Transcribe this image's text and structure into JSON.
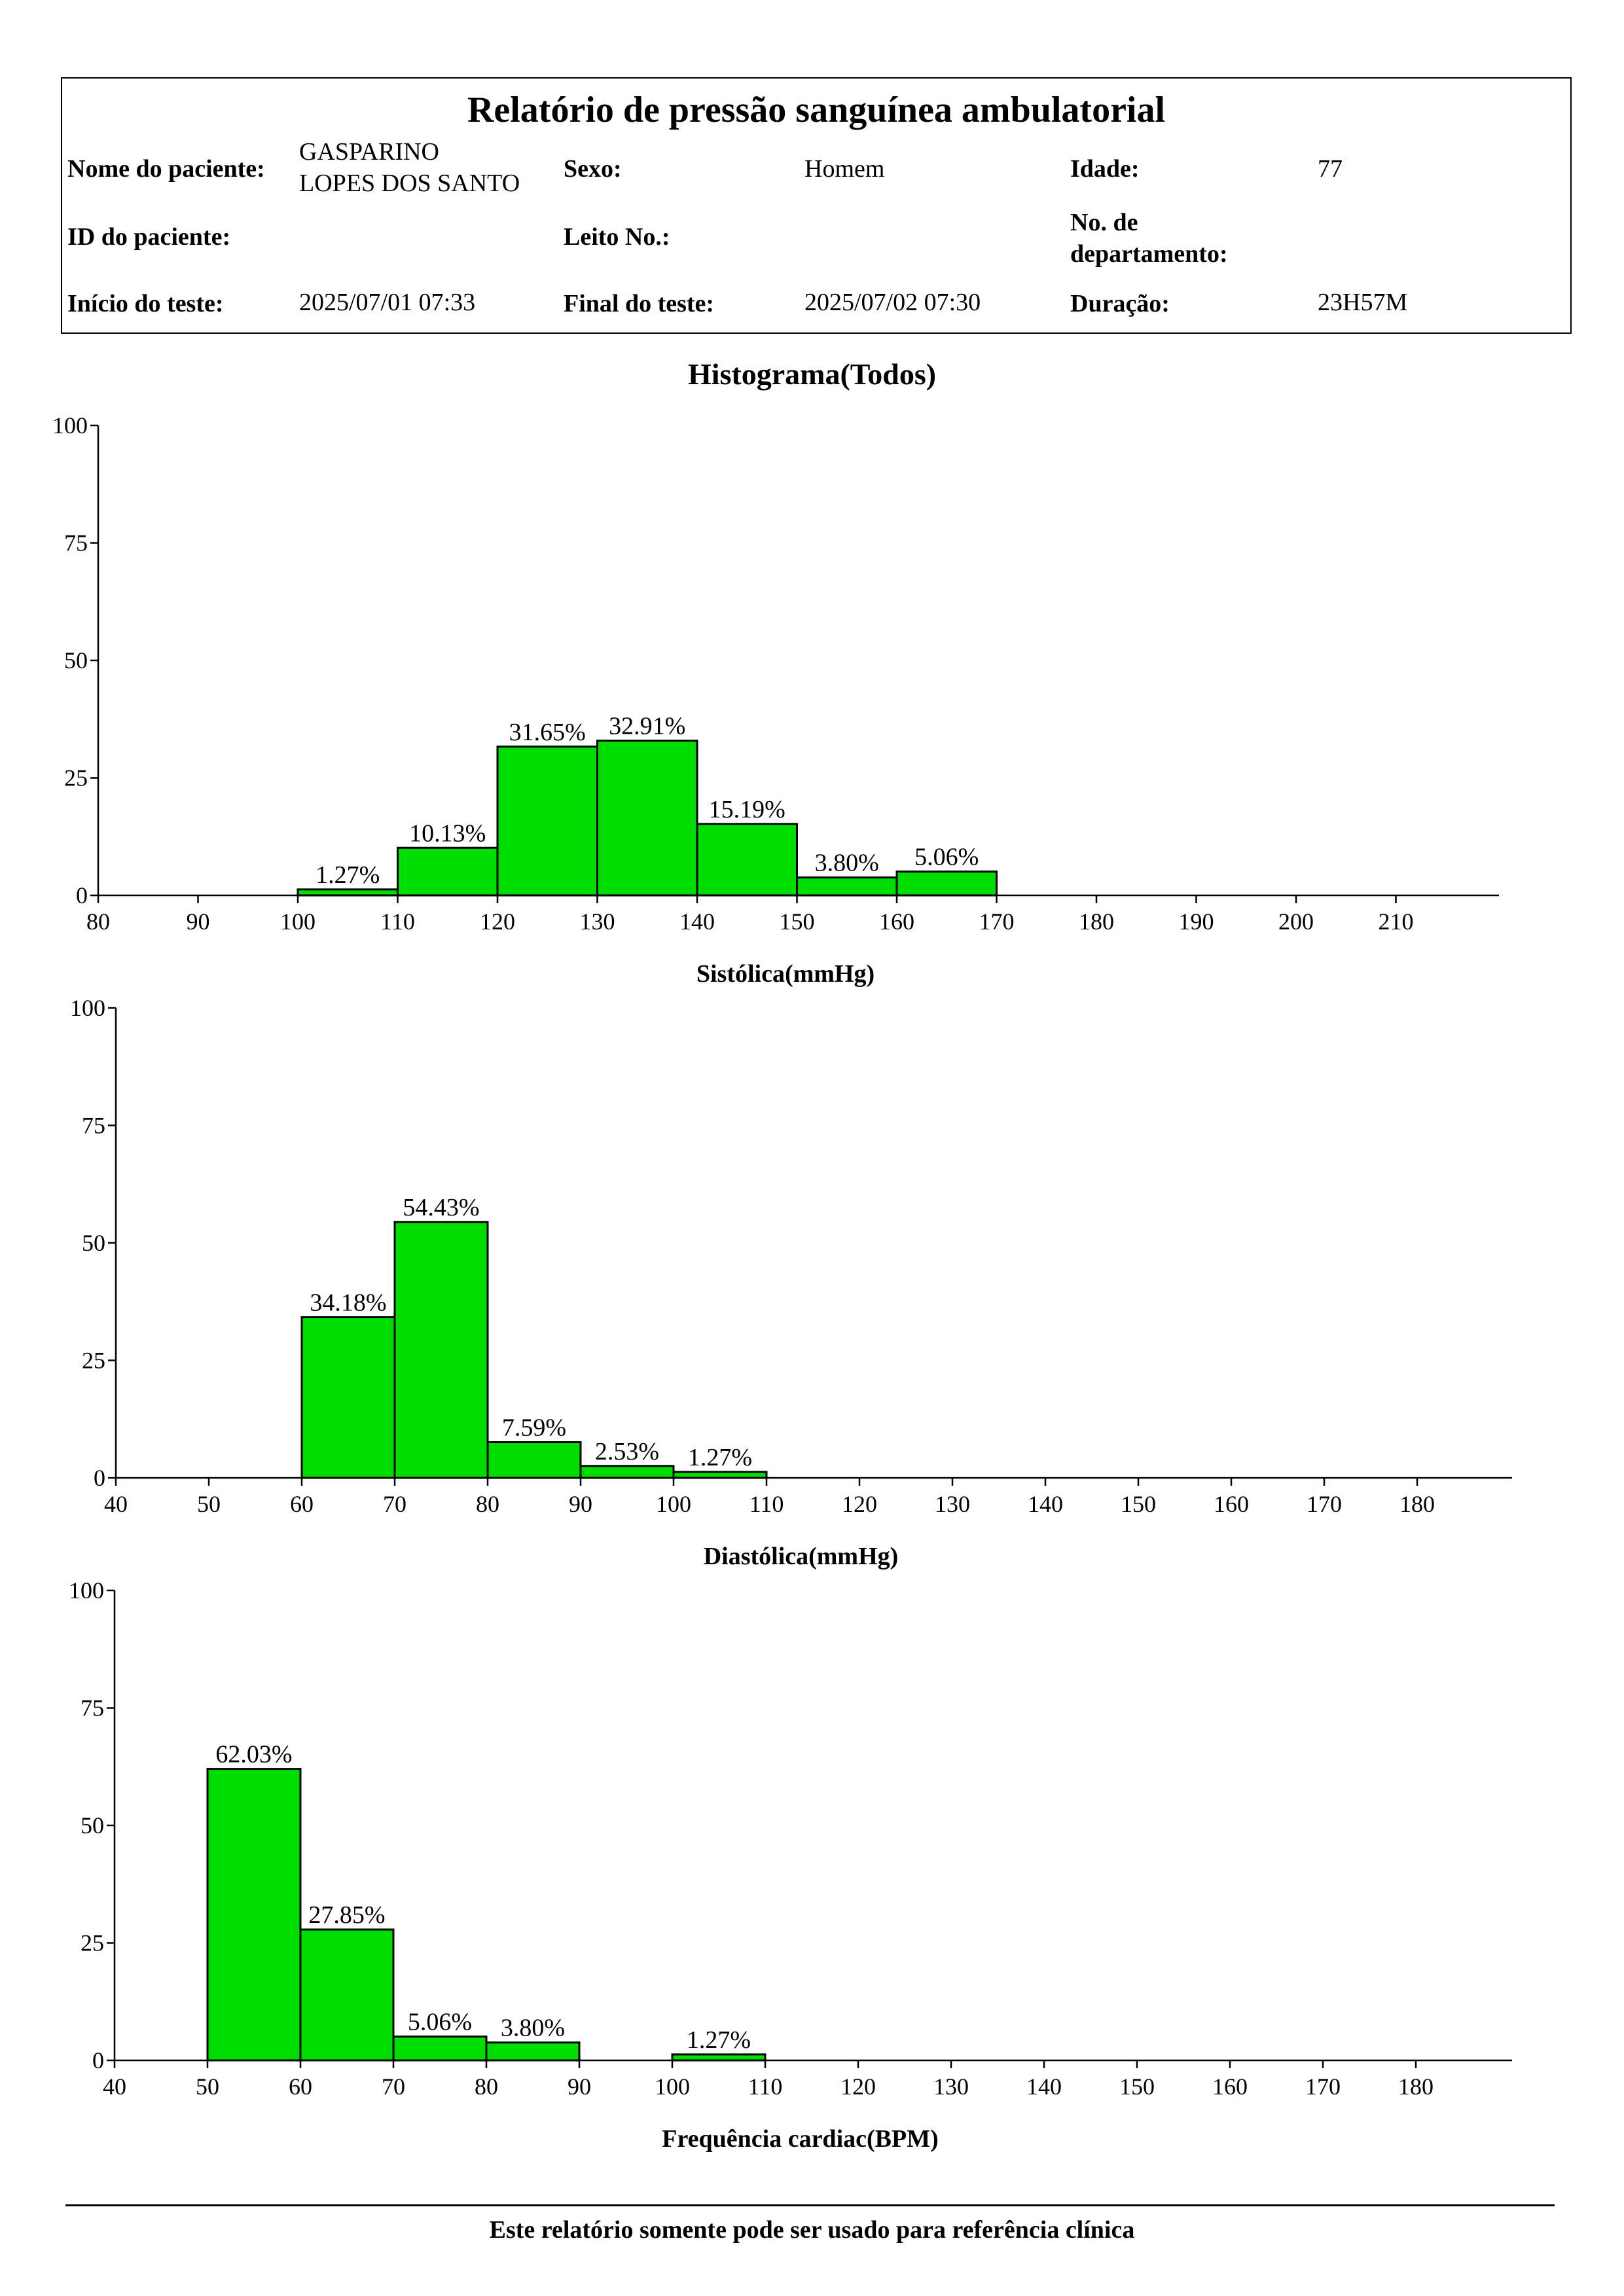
{
  "report": {
    "title": "Relatório de pressão sanguínea ambulatorial",
    "patient_name_label": "Nome do paciente:",
    "patient_name": "GASPARINO\nLOPES  DOS SANTO",
    "sex_label": "Sexo:",
    "sex": "Homem",
    "age_label": "Idade:",
    "age": "77",
    "patient_id_label": "ID do paciente:",
    "patient_id": "",
    "bed_label": "Leito No.:",
    "bed": "",
    "department_label": "No. de\ndepartamento:",
    "department": "",
    "start_label": "Início do teste:",
    "start": "2025/07/01 07:33",
    "end_label": "Final do teste:",
    "end": "2025/07/02 07:30",
    "duration_label": "Duração:",
    "duration": "23H57M"
  },
  "chart_heading": "Histograma(Todos)",
  "footer": "Este relatório somente pode ser usado para referência clínica",
  "colors": {
    "bar": "#00dd00",
    "axis": "#000000"
  },
  "chart_data": [
    {
      "type": "bar",
      "title": "Histograma(Todos)",
      "xlabel": "Sistólica(mmHg)",
      "ylabel": "",
      "xlim": [
        80,
        220
      ],
      "ylim": [
        0,
        100
      ],
      "xticks": [
        80,
        90,
        100,
        110,
        120,
        130,
        140,
        150,
        160,
        170,
        180,
        190,
        200,
        210
      ],
      "yticks": [
        0,
        25,
        50,
        75,
        100
      ],
      "bins": [
        {
          "from": 100,
          "to": 110,
          "value": 1.27,
          "label": "1.27%"
        },
        {
          "from": 110,
          "to": 120,
          "value": 10.13,
          "label": "10.13%"
        },
        {
          "from": 120,
          "to": 130,
          "value": 31.65,
          "label": "31.65%"
        },
        {
          "from": 130,
          "to": 140,
          "value": 32.91,
          "label": "32.91%"
        },
        {
          "from": 140,
          "to": 150,
          "value": 15.19,
          "label": "15.19%"
        },
        {
          "from": 150,
          "to": 160,
          "value": 3.8,
          "label": "3.80%"
        },
        {
          "from": 160,
          "to": 170,
          "value": 5.06,
          "label": "5.06%"
        }
      ],
      "grid": false
    },
    {
      "type": "bar",
      "xlabel": "Diastólica(mmHg)",
      "ylabel": "",
      "xlim": [
        40,
        190
      ],
      "ylim": [
        0,
        100
      ],
      "xticks": [
        40,
        50,
        60,
        70,
        80,
        90,
        100,
        110,
        120,
        130,
        140,
        150,
        160,
        170,
        180
      ],
      "yticks": [
        0,
        25,
        50,
        75,
        100
      ],
      "bins": [
        {
          "from": 60,
          "to": 70,
          "value": 34.18,
          "label": "34.18%"
        },
        {
          "from": 70,
          "to": 80,
          "value": 54.43,
          "label": "54.43%"
        },
        {
          "from": 80,
          "to": 90,
          "value": 7.59,
          "label": "7.59%"
        },
        {
          "from": 90,
          "to": 100,
          "value": 2.53,
          "label": "2.53%"
        },
        {
          "from": 100,
          "to": 110,
          "value": 1.27,
          "label": "1.27%"
        }
      ],
      "grid": false
    },
    {
      "type": "bar",
      "xlabel": "Frequência cardiac(BPM)",
      "ylabel": "",
      "xlim": [
        40,
        190
      ],
      "ylim": [
        0,
        100
      ],
      "xticks": [
        40,
        50,
        60,
        70,
        80,
        90,
        100,
        110,
        120,
        130,
        140,
        150,
        160,
        170,
        180
      ],
      "yticks": [
        0,
        25,
        50,
        75,
        100
      ],
      "bins": [
        {
          "from": 50,
          "to": 60,
          "value": 62.03,
          "label": "62.03%"
        },
        {
          "from": 60,
          "to": 70,
          "value": 27.85,
          "label": "27.85%"
        },
        {
          "from": 70,
          "to": 80,
          "value": 5.06,
          "label": "5.06%"
        },
        {
          "from": 80,
          "to": 90,
          "value": 3.8,
          "label": "3.80%"
        },
        {
          "from": 100,
          "to": 110,
          "value": 1.27,
          "label": "1.27%"
        }
      ],
      "grid": false
    }
  ]
}
